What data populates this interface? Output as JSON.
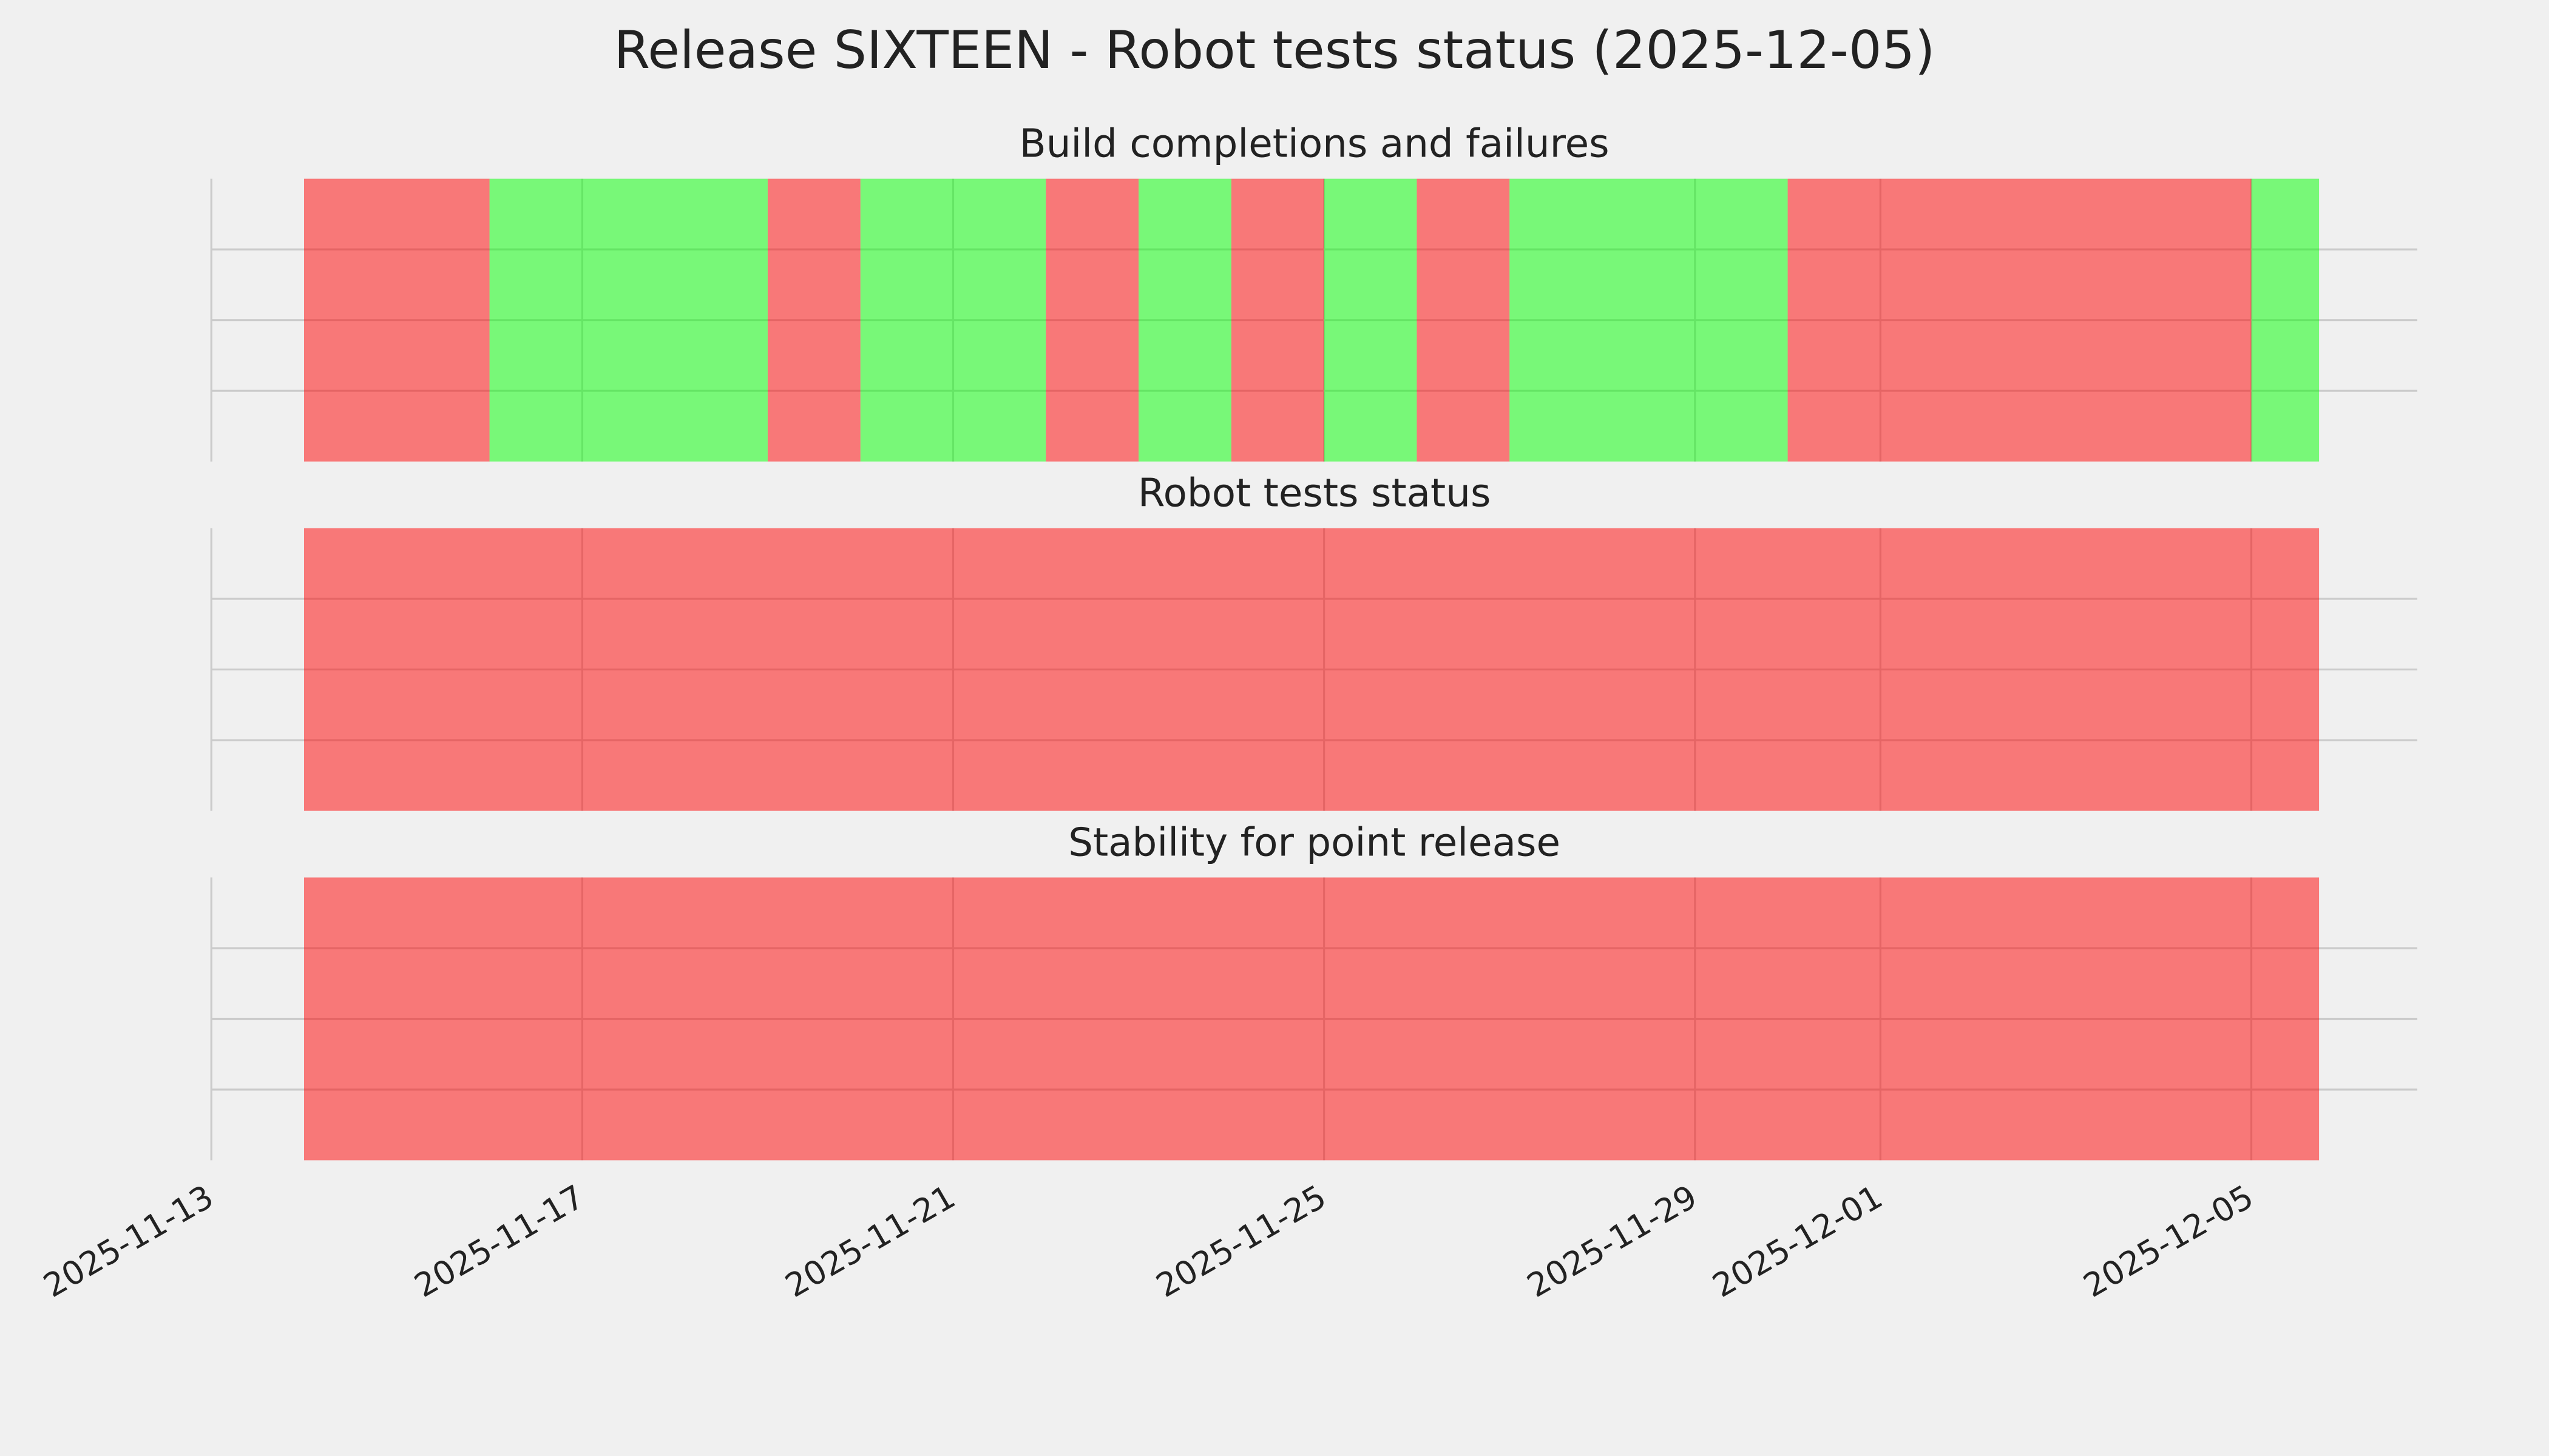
{
  "title": "Release SIXTEEN - Robot tests status (2025-12-05)",
  "chart_data": [
    {
      "type": "timeline",
      "title": "Build completions and failures",
      "alpha": 0.5,
      "grid": true,
      "xlim": [
        20405,
        20428.79
      ],
      "ylim": [
        0,
        1
      ],
      "yticks": [
        0.25,
        0.5,
        0.75
      ],
      "xticks": [
        {
          "value": 20405,
          "label": "2025-11-13"
        },
        {
          "value": 20409,
          "label": "2025-11-17"
        },
        {
          "value": 20413,
          "label": "2025-11-21"
        },
        {
          "value": 20417,
          "label": "2025-11-25"
        },
        {
          "value": 20421,
          "label": "2025-11-29"
        },
        {
          "value": 20423,
          "label": "2025-12-01"
        },
        {
          "value": 20427,
          "label": "2025-12-05"
        }
      ],
      "segments": [
        {
          "start": 20406,
          "end": 20408,
          "color": "#ff0000"
        },
        {
          "start": 20408,
          "end": 20411,
          "color": "#00ff00"
        },
        {
          "start": 20411,
          "end": 20412,
          "color": "#ff0000"
        },
        {
          "start": 20412,
          "end": 20414,
          "color": "#00ff00"
        },
        {
          "start": 20414,
          "end": 20415,
          "color": "#ff0000"
        },
        {
          "start": 20415,
          "end": 20416,
          "color": "#00ff00"
        },
        {
          "start": 20416,
          "end": 20417,
          "color": "#ff0000"
        },
        {
          "start": 20417,
          "end": 20418,
          "color": "#00ff00"
        },
        {
          "start": 20418,
          "end": 20419,
          "color": "#ff0000"
        },
        {
          "start": 20419,
          "end": 20422,
          "color": "#00ff00"
        },
        {
          "start": 20422,
          "end": 20427,
          "color": "#ff0000"
        },
        {
          "start": 20427,
          "end": 20427.73,
          "color": "#00ff00"
        }
      ]
    },
    {
      "type": "timeline",
      "title": "Robot tests status",
      "alpha": 0.5,
      "grid": true,
      "xlim": [
        20405,
        20428.79
      ],
      "ylim": [
        0,
        1
      ],
      "yticks": [
        0.25,
        0.5,
        0.75
      ],
      "xticks": [
        {
          "value": 20405,
          "label": "2025-11-13"
        },
        {
          "value": 20409,
          "label": "2025-11-17"
        },
        {
          "value": 20413,
          "label": "2025-11-21"
        },
        {
          "value": 20417,
          "label": "2025-11-25"
        },
        {
          "value": 20421,
          "label": "2025-11-29"
        },
        {
          "value": 20423,
          "label": "2025-12-01"
        },
        {
          "value": 20427,
          "label": "2025-12-05"
        }
      ],
      "segments": [
        {
          "start": 20406,
          "end": 20427.73,
          "color": "#ff0000"
        }
      ]
    },
    {
      "type": "timeline",
      "title": "Stability for point release",
      "alpha": 0.5,
      "grid": true,
      "xlim": [
        20405,
        20428.79
      ],
      "ylim": [
        0,
        1
      ],
      "yticks": [
        0.25,
        0.5,
        0.75
      ],
      "xticks": [
        {
          "value": 20405,
          "label": "2025-11-13"
        },
        {
          "value": 20409,
          "label": "2025-11-17"
        },
        {
          "value": 20413,
          "label": "2025-11-21"
        },
        {
          "value": 20417,
          "label": "2025-11-25"
        },
        {
          "value": 20421,
          "label": "2025-11-29"
        },
        {
          "value": 20423,
          "label": "2025-12-01"
        },
        {
          "value": 20427,
          "label": "2025-12-05"
        }
      ],
      "segments": [
        {
          "start": 20406,
          "end": 20427.73,
          "color": "#ff0000"
        }
      ]
    }
  ]
}
